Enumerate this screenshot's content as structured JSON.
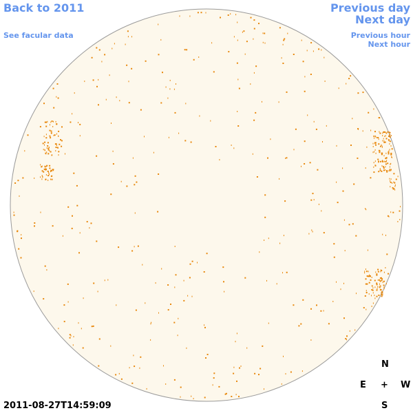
{
  "nav": {
    "back": "Back to 2011",
    "facular": "See facular data",
    "previous_day": "Previous day",
    "next_day": "Next day",
    "previous_hour": "Previous hour",
    "next_hour": "Next hour"
  },
  "compass": {
    "north": "N",
    "east": "E",
    "center": "+",
    "west": "W",
    "south": "S"
  },
  "timestamp": "2011-08-27T14:59:09"
}
